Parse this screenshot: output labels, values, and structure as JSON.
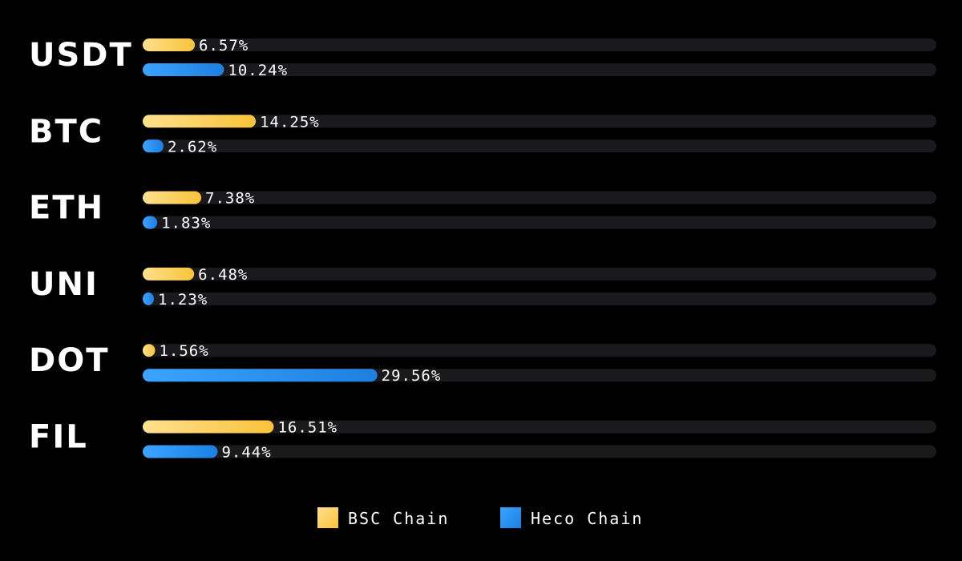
{
  "chart_data": {
    "type": "bar",
    "orientation": "horizontal",
    "categories": [
      "USDT",
      "BTC",
      "ETH",
      "UNI",
      "DOT",
      "FIL"
    ],
    "series": [
      {
        "name": "BSC Chain",
        "values": [
          6.57,
          14.25,
          7.38,
          6.48,
          1.56,
          16.51
        ],
        "labels": [
          "6.57%",
          "14.25%",
          "7.38%",
          "6.48%",
          "1.56%",
          "16.51%"
        ],
        "color": "#F9C33A",
        "color_light": "#FFE08E"
      },
      {
        "name": "Heco Chain",
        "values": [
          10.24,
          2.62,
          1.83,
          1.23,
          29.56,
          9.44
        ],
        "labels": [
          "10.24%",
          "2.62%",
          "1.83%",
          "1.23%",
          "29.56%",
          "9.44%"
        ],
        "color": "#1E7FE0",
        "color_light": "#3AA4FF"
      }
    ],
    "xlim": [
      0,
      100
    ],
    "track_color": "#1A1A1C",
    "grid": false,
    "legend_position": "bottom-center"
  }
}
